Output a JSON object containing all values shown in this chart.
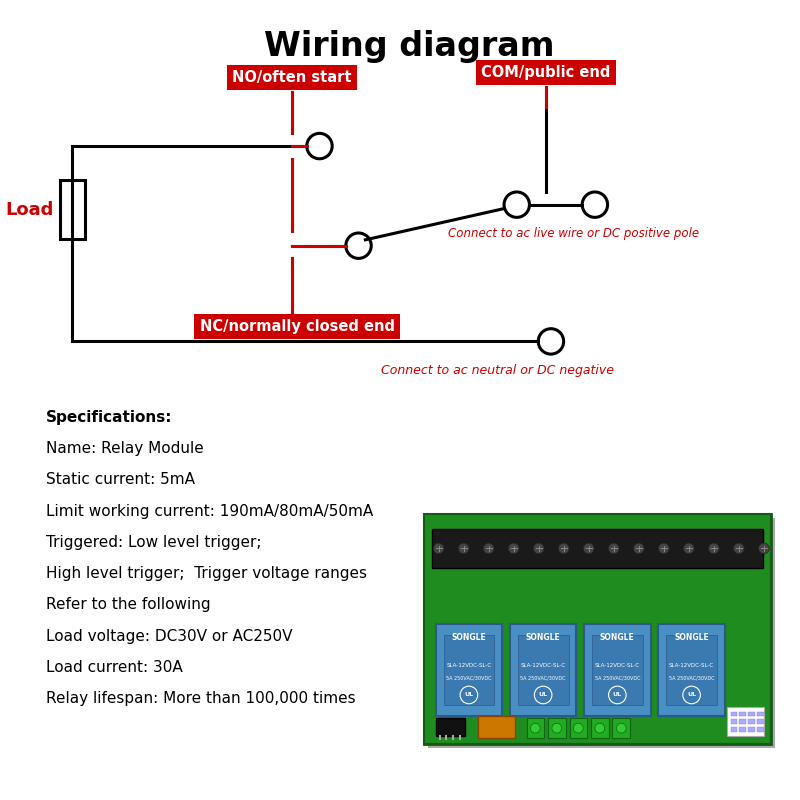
{
  "title": "Wiring diagram",
  "title_fontsize": 24,
  "title_fontweight": "bold",
  "bg_color": "#ffffff",
  "wire_color": "#000000",
  "red_color": "#cc0000",
  "label_bg_color": "#cc0000",
  "label_text_color": "#ffffff",
  "load_label": "Load",
  "no_label": "NO/often start",
  "com_label": "COM/public end",
  "nc_label": "NC/normally closed end",
  "live_label": "Connect to ac live wire or DC positive pole",
  "neutral_label": "Connect to ac neutral or DC negative",
  "specs": [
    "Specifications:",
    "Name: Relay Module",
    "Static current: 5mA",
    "Limit working current: 190mA/80mA/50mA",
    "Triggered: Low level trigger;",
    "High level trigger;  Trigger voltage ranges",
    "Refer to the following",
    "Load voltage: DC30V or AC250V",
    "Load current: 30A",
    "Relay lifespan: More than 100,000 times"
  ]
}
